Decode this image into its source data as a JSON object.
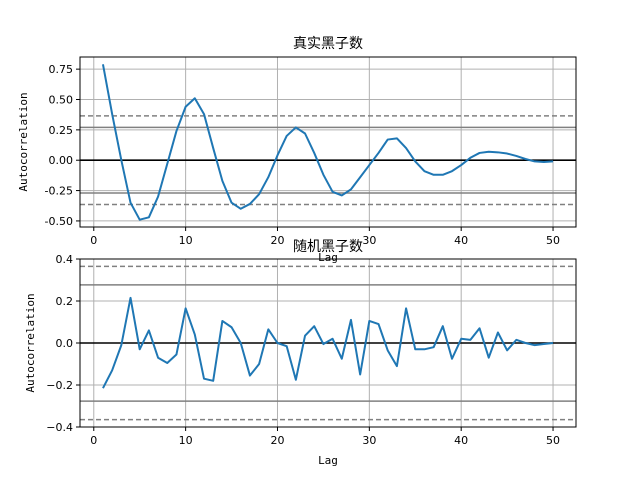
{
  "chart_data": [
    {
      "type": "line",
      "title": "真实黑子数",
      "xlabel": "Lag",
      "ylabel": "Autocorrelation",
      "xlim": [
        -1.5,
        52.5
      ],
      "ylim": [
        -0.55,
        0.85
      ],
      "xticks": [
        "0",
        "10",
        "20",
        "30",
        "40",
        "50"
      ],
      "yticks": [
        "-0.50",
        "-0.25",
        "0.00",
        "0.25",
        "0.50",
        "0.75"
      ],
      "grid": true,
      "confidence_bands": {
        "solid": [
          0.27,
          -0.27
        ],
        "dashed": [
          0.365,
          -0.365
        ]
      },
      "series": [
        {
          "color": "#1f77b4",
          "x": [
            1,
            2,
            3,
            4,
            5,
            6,
            7,
            8,
            9,
            10,
            11,
            12,
            13,
            14,
            15,
            16,
            17,
            18,
            19,
            20,
            21,
            22,
            23,
            24,
            25,
            26,
            27,
            28,
            29,
            30,
            31,
            32,
            33,
            34,
            35,
            36,
            37,
            38,
            39,
            40,
            41,
            42,
            43,
            44,
            45,
            46,
            47,
            48,
            49,
            50
          ],
          "values": [
            0.79,
            0.38,
            0.0,
            -0.35,
            -0.49,
            -0.47,
            -0.3,
            -0.03,
            0.24,
            0.44,
            0.51,
            0.38,
            0.1,
            -0.17,
            -0.35,
            -0.4,
            -0.36,
            -0.28,
            -0.14,
            0.04,
            0.2,
            0.27,
            0.22,
            0.06,
            -0.12,
            -0.26,
            -0.29,
            -0.24,
            -0.14,
            -0.04,
            0.06,
            0.17,
            0.18,
            0.1,
            -0.01,
            -0.09,
            -0.12,
            -0.12,
            -0.09,
            -0.04,
            0.02,
            0.06,
            0.07,
            0.065,
            0.055,
            0.035,
            0.01,
            -0.01,
            -0.015,
            -0.01
          ]
        }
      ]
    },
    {
      "type": "line",
      "title": "随机黑子数",
      "xlabel": "Lag",
      "ylabel": "Autocorrelation",
      "xlim": [
        -1.5,
        52.5
      ],
      "ylim": [
        -0.4,
        0.4
      ],
      "xticks": [
        "0",
        "10",
        "20",
        "30",
        "40",
        "50"
      ],
      "yticks": [
        "−0.4",
        "−0.2",
        "0.0",
        "0.2",
        "0.4"
      ],
      "grid": true,
      "confidence_bands": {
        "solid": [
          0.277,
          -0.277
        ],
        "dashed": [
          0.365,
          -0.365
        ]
      },
      "series": [
        {
          "color": "#1f77b4",
          "x": [
            1,
            2,
            3,
            4,
            5,
            6,
            7,
            8,
            9,
            10,
            11,
            12,
            13,
            14,
            15,
            16,
            17,
            18,
            19,
            20,
            21,
            22,
            23,
            24,
            25,
            26,
            27,
            28,
            29,
            30,
            31,
            32,
            33,
            34,
            35,
            36,
            37,
            38,
            39,
            40,
            41,
            42,
            43,
            44,
            45,
            46,
            47,
            48,
            49,
            50
          ],
          "values": [
            -0.215,
            -0.13,
            -0.01,
            0.215,
            -0.03,
            0.06,
            -0.07,
            -0.095,
            -0.055,
            0.165,
            0.04,
            -0.17,
            -0.18,
            0.105,
            0.075,
            0.0,
            -0.155,
            -0.1,
            0.065,
            0.0,
            -0.015,
            -0.175,
            0.035,
            0.08,
            -0.005,
            0.02,
            -0.075,
            0.11,
            -0.15,
            0.105,
            0.09,
            -0.035,
            -0.11,
            0.165,
            -0.03,
            -0.03,
            -0.02,
            0.08,
            -0.075,
            0.02,
            0.015,
            0.07,
            -0.07,
            0.05,
            -0.035,
            0.015,
            0.0,
            -0.01,
            -0.005,
            0.0
          ]
        }
      ]
    }
  ]
}
